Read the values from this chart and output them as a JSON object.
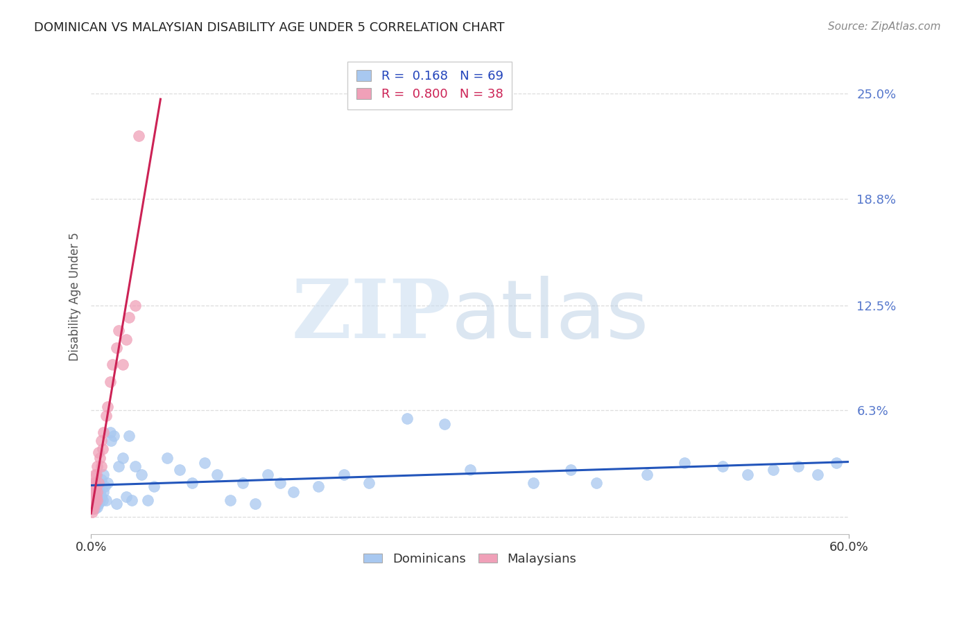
{
  "title": "DOMINICAN VS MALAYSIAN DISABILITY AGE UNDER 5 CORRELATION CHART",
  "source": "Source: ZipAtlas.com",
  "ylabel": "Disability Age Under 5",
  "yticks": [
    0.0,
    0.063,
    0.125,
    0.188,
    0.25
  ],
  "ytick_labels": [
    "",
    "6.3%",
    "12.5%",
    "18.8%",
    "25.0%"
  ],
  "xlim": [
    0.0,
    0.6
  ],
  "ylim": [
    -0.01,
    0.27
  ],
  "dominican_color": "#A8C8F0",
  "dominican_edge_color": "#A8C8F0",
  "malaysian_color": "#F0A0B8",
  "malaysian_edge_color": "#F0A0B8",
  "dominican_line_color": "#2255BB",
  "malaysian_line_color": "#CC2255",
  "R_dominican": 0.168,
  "N_dominican": 69,
  "R_malaysian": 0.8,
  "N_malaysian": 38,
  "dominican_x": [
    0.001,
    0.001,
    0.001,
    0.002,
    0.002,
    0.002,
    0.003,
    0.003,
    0.003,
    0.003,
    0.004,
    0.004,
    0.004,
    0.005,
    0.005,
    0.005,
    0.006,
    0.006,
    0.007,
    0.007,
    0.008,
    0.008,
    0.009,
    0.01,
    0.01,
    0.011,
    0.012,
    0.013,
    0.015,
    0.016,
    0.018,
    0.02,
    0.022,
    0.025,
    0.028,
    0.03,
    0.032,
    0.035,
    0.04,
    0.045,
    0.05,
    0.06,
    0.07,
    0.08,
    0.09,
    0.1,
    0.11,
    0.12,
    0.13,
    0.14,
    0.15,
    0.16,
    0.18,
    0.2,
    0.22,
    0.25,
    0.28,
    0.3,
    0.35,
    0.38,
    0.4,
    0.44,
    0.47,
    0.5,
    0.52,
    0.54,
    0.56,
    0.575,
    0.59
  ],
  "dominican_y": [
    0.01,
    0.012,
    0.015,
    0.008,
    0.01,
    0.018,
    0.005,
    0.012,
    0.015,
    0.02,
    0.008,
    0.014,
    0.018,
    0.006,
    0.01,
    0.016,
    0.008,
    0.02,
    0.01,
    0.015,
    0.012,
    0.022,
    0.01,
    0.015,
    0.025,
    0.018,
    0.01,
    0.02,
    0.05,
    0.045,
    0.048,
    0.008,
    0.03,
    0.035,
    0.012,
    0.048,
    0.01,
    0.03,
    0.025,
    0.01,
    0.018,
    0.035,
    0.028,
    0.02,
    0.032,
    0.025,
    0.01,
    0.02,
    0.008,
    0.025,
    0.02,
    0.015,
    0.018,
    0.025,
    0.02,
    0.058,
    0.055,
    0.028,
    0.02,
    0.028,
    0.02,
    0.025,
    0.032,
    0.03,
    0.025,
    0.028,
    0.03,
    0.025,
    0.032
  ],
  "malaysian_x": [
    0.001,
    0.001,
    0.001,
    0.001,
    0.001,
    0.002,
    0.002,
    0.002,
    0.002,
    0.003,
    0.003,
    0.003,
    0.003,
    0.003,
    0.004,
    0.004,
    0.004,
    0.005,
    0.005,
    0.005,
    0.006,
    0.006,
    0.007,
    0.008,
    0.008,
    0.009,
    0.01,
    0.012,
    0.013,
    0.015,
    0.017,
    0.02,
    0.022,
    0.025,
    0.028,
    0.03,
    0.035,
    0.038
  ],
  "malaysian_y": [
    0.003,
    0.005,
    0.008,
    0.01,
    0.015,
    0.005,
    0.008,
    0.012,
    0.02,
    0.008,
    0.01,
    0.015,
    0.02,
    0.025,
    0.012,
    0.018,
    0.025,
    0.01,
    0.015,
    0.03,
    0.02,
    0.038,
    0.035,
    0.03,
    0.045,
    0.04,
    0.05,
    0.06,
    0.065,
    0.08,
    0.09,
    0.1,
    0.11,
    0.09,
    0.105,
    0.118,
    0.125,
    0.225
  ],
  "mal_line_x_start": 0.0,
  "mal_line_x_end": 0.055,
  "dom_line_x_start": 0.0,
  "dom_line_x_end": 0.6,
  "grid_color": "#DDDDDD",
  "grid_style": "--",
  "watermark_zip_color": "#C8DCF0",
  "watermark_atlas_color": "#B0C8E0",
  "title_fontsize": 13,
  "source_fontsize": 11,
  "tick_fontsize": 13,
  "ylabel_fontsize": 12,
  "legend_fontsize": 13,
  "dot_size": 130,
  "dot_alpha": 0.75
}
